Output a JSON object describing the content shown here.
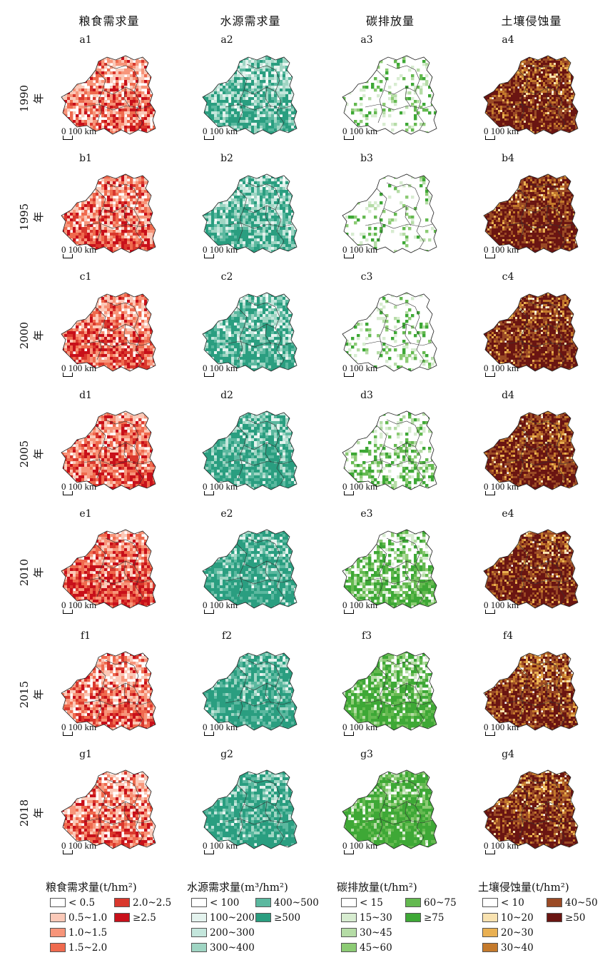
{
  "columns": [
    {
      "title": "粮食需求量",
      "prefix": "",
      "colors": [
        "#ffffff",
        "#fbc9b8",
        "#f7957a",
        "#ef6a4e",
        "#d9382d",
        "#c8101a"
      ],
      "weights": [
        0.48,
        0.26,
        0.14,
        0.07,
        0.03,
        0.02
      ]
    },
    {
      "title": "水源需求量",
      "prefix": "",
      "colors": [
        "#ffffff",
        "#e4f3ee",
        "#c4e6dc",
        "#9fd5c3",
        "#5bb89f",
        "#2a9e80"
      ],
      "weights": [
        0.3,
        0.24,
        0.18,
        0.12,
        0.08,
        0.08
      ]
    },
    {
      "title": "碳排放量",
      "prefix": "",
      "colors": [
        "#ffffff",
        "#d7ecd0",
        "#b5dca6",
        "#8ccb74",
        "#64b950",
        "#3ea836"
      ],
      "weights": [
        0.86,
        0.05,
        0.03,
        0.02,
        0.02,
        0.02
      ]
    },
    {
      "title": "土壤侵蚀量",
      "prefix": "",
      "colors": [
        "#ffffff",
        "#f8e2b0",
        "#e9b052",
        "#c47a2c",
        "#9a4a25",
        "#6a1512"
      ],
      "weights": [
        0.3,
        0.16,
        0.14,
        0.16,
        0.14,
        0.1
      ]
    }
  ],
  "rows": [
    {
      "year": "1990年",
      "letter": "a",
      "levels": [
        0.35,
        0.45,
        0.05,
        0.75
      ]
    },
    {
      "year": "1995年",
      "letter": "b",
      "levels": [
        0.45,
        0.5,
        0.02,
        0.95
      ]
    },
    {
      "year": "2000年",
      "letter": "c",
      "levels": [
        0.5,
        0.55,
        0.06,
        0.85
      ]
    },
    {
      "year": "2005年",
      "letter": "d",
      "levels": [
        0.5,
        0.85,
        0.25,
        0.8
      ]
    },
    {
      "year": "2010年",
      "letter": "e",
      "levels": [
        0.6,
        0.9,
        0.45,
        0.82
      ]
    },
    {
      "year": "2015年",
      "letter": "f",
      "levels": [
        0.4,
        0.92,
        0.7,
        0.55
      ]
    },
    {
      "year": "2018年",
      "letter": "g",
      "levels": [
        0.35,
        0.9,
        0.85,
        0.7
      ]
    }
  ],
  "scale_bar": "0 100 km",
  "legends": [
    {
      "title": "粮食需求量(t/hm²)",
      "items": [
        "< 0.5",
        "0.5~1.0",
        "1.0~1.5",
        "1.5~2.0",
        "2.0~2.5",
        "≥2.5"
      ]
    },
    {
      "title": "水源需求量(m³/hm²)",
      "items": [
        "< 100",
        "100~200",
        "200~300",
        "300~400",
        "400~500",
        "≥500"
      ]
    },
    {
      "title": "碳排放量(t/hm²)",
      "items": [
        "< 15",
        "15~30",
        "30~45",
        "45~60",
        "60~75",
        "≥75"
      ]
    },
    {
      "title": "土壤侵蚀量(t/hm²)",
      "items": [
        "< 10",
        "10~20",
        "20~30",
        "30~40",
        "40~50",
        "≥50"
      ]
    }
  ]
}
